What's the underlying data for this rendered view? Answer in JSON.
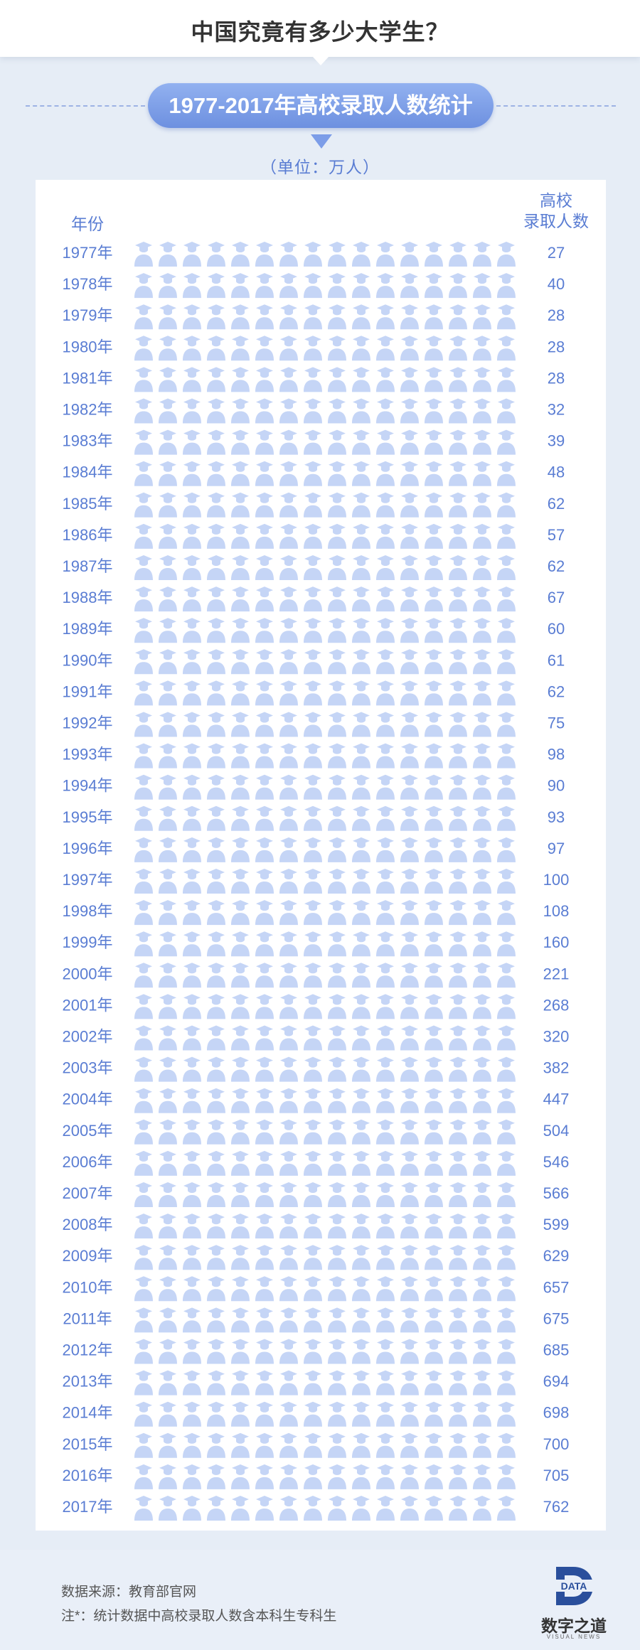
{
  "header": {
    "title": "中国究竟有多少大学生？",
    "subtitle": "1977-2017年高校录取人数统计",
    "unit": "（单位：万人）"
  },
  "columns": {
    "year_label": "年份",
    "count_label_line1": "高校",
    "count_label_line2": "录取人数"
  },
  "footer": {
    "source": "数据来源：教育部官网",
    "note": "注*：统计数据中高校录取人数含本科生专科生"
  },
  "logo": {
    "name": "数字之道",
    "badge": "DATA",
    "sub": "VISUAL NEWS"
  },
  "colors": {
    "filled": "#3d64b9",
    "empty": "#c5d5f6",
    "label": "#5a7dd3",
    "pill": "#7c9de8"
  },
  "chart_data": {
    "type": "pictogram",
    "icon": "graduate-icon",
    "icon_value": 50,
    "icons_per_row": 16,
    "unit": "万人",
    "categories": [
      "1977年",
      "1978年",
      "1979年",
      "1980年",
      "1981年",
      "1982年",
      "1983年",
      "1984年",
      "1985年",
      "1986年",
      "1987年",
      "1988年",
      "1989年",
      "1990年",
      "1991年",
      "1992年",
      "1993年",
      "1994年",
      "1995年",
      "1996年",
      "1997年",
      "1998年",
      "1999年",
      "2000年",
      "2001年",
      "2002年",
      "2003年",
      "2004年",
      "2005年",
      "2006年",
      "2007年",
      "2008年",
      "2009年",
      "2010年",
      "2011年",
      "2012年",
      "2013年",
      "2014年",
      "2015年",
      "2016年",
      "2017年"
    ],
    "values": [
      27,
      40,
      28,
      28,
      28,
      32,
      39,
      48,
      62,
      57,
      62,
      67,
      60,
      61,
      62,
      75,
      98,
      90,
      93,
      97,
      100,
      108,
      160,
      221,
      268,
      320,
      382,
      447,
      504,
      546,
      566,
      599,
      629,
      657,
      675,
      685,
      694,
      698,
      700,
      705,
      762
    ]
  }
}
